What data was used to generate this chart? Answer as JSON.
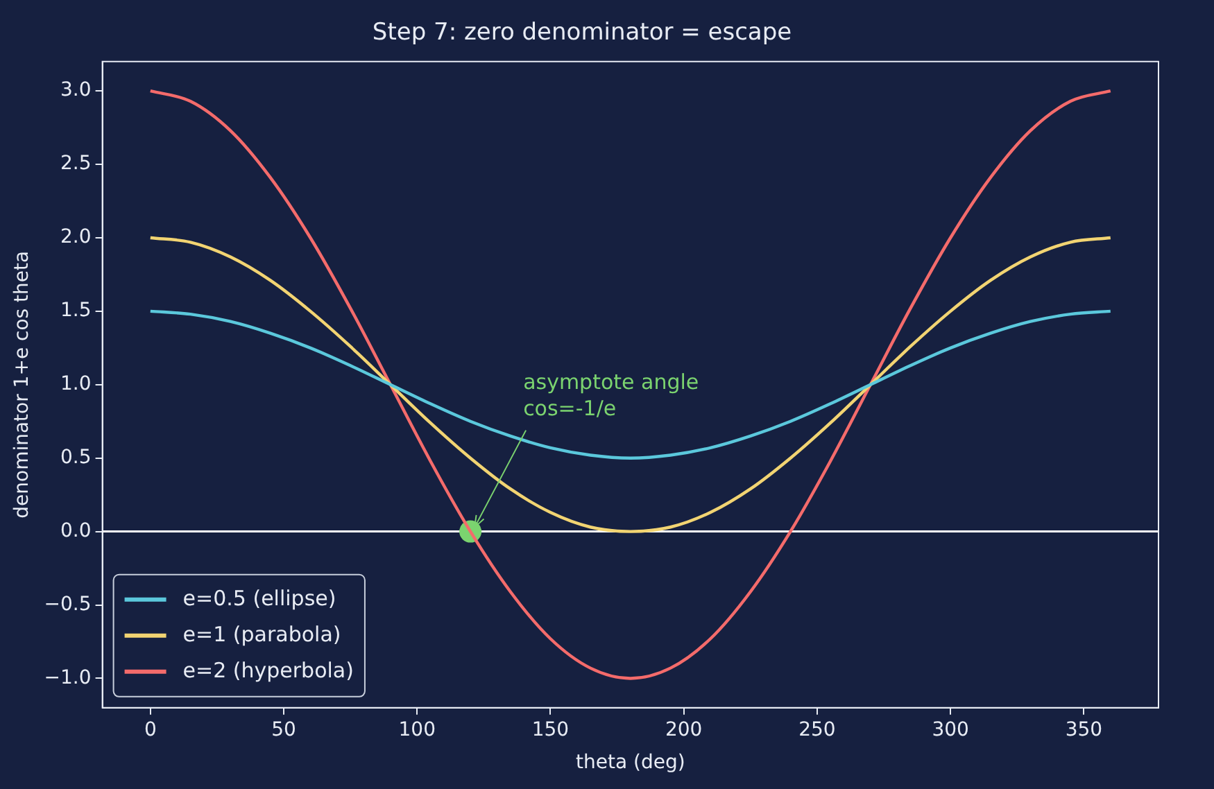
{
  "chart_data": {
    "type": "line",
    "title": "Step 7: zero denominator = escape",
    "xlabel": "theta (deg)",
    "ylabel": "denominator 1+e cos theta",
    "x": [
      0,
      15,
      30,
      45,
      60,
      75,
      90,
      105,
      120,
      135,
      150,
      165,
      180,
      195,
      210,
      225,
      240,
      255,
      270,
      285,
      300,
      315,
      330,
      345,
      360
    ],
    "series": [
      {
        "name": "e=0.5 (ellipse)",
        "color": "#5bc8dc",
        "values": [
          1.5,
          1.48,
          1.43,
          1.35,
          1.25,
          1.13,
          1,
          0.87,
          0.75,
          0.65,
          0.57,
          0.52,
          0.5,
          0.52,
          0.57,
          0.65,
          0.75,
          0.87,
          1,
          1.13,
          1.25,
          1.35,
          1.43,
          1.48,
          1.5
        ]
      },
      {
        "name": "e=1 (parabola)",
        "color": "#f2d472",
        "values": [
          2,
          1.97,
          1.87,
          1.71,
          1.5,
          1.26,
          1,
          0.74,
          0.5,
          0.29,
          0.13,
          0.03,
          0,
          0.03,
          0.13,
          0.29,
          0.5,
          0.74,
          1,
          1.26,
          1.5,
          1.71,
          1.87,
          1.97,
          2
        ]
      },
      {
        "name": "e=2 (hyperbola)",
        "color": "#f46b6b",
        "values": [
          3,
          2.93,
          2.73,
          2.41,
          2,
          1.52,
          1,
          0.48,
          0,
          -0.41,
          -0.73,
          -0.93,
          -1,
          -0.93,
          -0.73,
          -0.41,
          0,
          0.48,
          1,
          1.52,
          2,
          2.41,
          2.73,
          2.93,
          3
        ]
      },
      {
        "type": "scatter",
        "color": "#7bd36f",
        "marker": "circle",
        "x": [
          120
        ],
        "values": [
          0
        ]
      }
    ],
    "ref_lines": [
      {
        "axis": "y",
        "value": 0,
        "color": "#ffffff"
      }
    ],
    "annotations": [
      {
        "text": "asymptote angle\ncos=-1/e",
        "x": 120,
        "y": 0
      }
    ],
    "xlim": [
      -18,
      378
    ],
    "ylim": [
      -1.2,
      3.2
    ],
    "xticks": [
      0,
      50,
      100,
      150,
      200,
      250,
      300,
      350
    ],
    "yticks": [
      {
        "value": -1,
        "label": "−1.0"
      },
      {
        "value": -0.5,
        "label": "−0.5"
      },
      {
        "value": 0,
        "label": "0.0"
      },
      {
        "value": 0.5,
        "label": "0.5"
      },
      {
        "value": 1,
        "label": "1.0"
      },
      {
        "value": 1.5,
        "label": "1.5"
      },
      {
        "value": 2,
        "label": "2.0"
      },
      {
        "value": 2.5,
        "label": "2.5"
      },
      {
        "value": 3,
        "label": "3.0"
      }
    ],
    "legend": "bottom left",
    "grid": false
  }
}
